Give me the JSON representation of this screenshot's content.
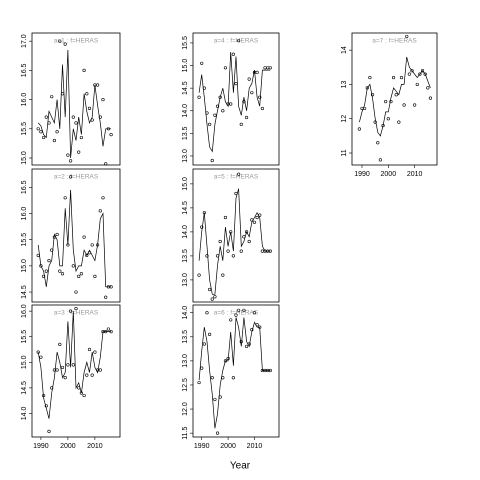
{
  "xlabel": "Year",
  "chart_data": [
    {
      "type": "line",
      "title": "a=1 : f=HERAS",
      "x": [
        1989,
        1990,
        1991,
        1992,
        1993,
        1994,
        1995,
        1996,
        1997,
        1998,
        1999,
        2000,
        2001,
        2002,
        2003,
        2004,
        2005,
        2006,
        2007,
        2008,
        2009,
        2010,
        2011,
        2012,
        2013,
        2014,
        2015,
        2016
      ],
      "xlim": [
        1986.7,
        2019.3
      ],
      "ylim": [
        14.88,
        17.14
      ],
      "yticks": [
        {
          "value": 15,
          "label": "15.0"
        },
        15.5,
        {
          "value": 16,
          "label": "16.0"
        },
        16.5,
        {
          "value": 17,
          "label": "17.0"
        }
      ],
      "series": [
        {
          "style": "points",
          "color": "#000",
          "values": [
            15.5,
            15.45,
            15.35,
            15.7,
            15.6,
            16.05,
            15.3,
            15.45,
            17.0,
            16.1,
            16.95,
            15.05,
            14.95,
            15.7,
            15.6,
            15.1,
            15.35,
            16.5,
            16.1,
            15.85,
            15.65,
            16.25,
            16.25,
            15.7,
            16.0,
            14.9,
            15.5,
            15.4
          ]
        },
        {
          "style": "line",
          "color": "#000",
          "values": [
            15.6,
            15.55,
            15.4,
            15.35,
            15.8,
            15.7,
            15.6,
            16.0,
            15.5,
            16.6,
            15.7,
            16.85,
            15.0,
            15.5,
            15.3,
            15.7,
            15.4,
            16.1,
            15.8,
            15.6,
            15.7,
            16.25,
            15.9,
            15.6,
            15.2,
            15.5,
            15.5,
            15.5
          ]
        }
      ]
    },
    {
      "type": "line",
      "title": "a=2 : f=HERAS",
      "x": [
        1989,
        1990,
        1991,
        1992,
        1993,
        1994,
        1995,
        1996,
        1997,
        1998,
        1999,
        2000,
        2001,
        2002,
        2003,
        2004,
        2005,
        2006,
        2007,
        2008,
        2009,
        2010,
        2011,
        2012,
        2013,
        2014,
        2015,
        2016
      ],
      "xlim": [
        1986.7,
        2019.3
      ],
      "ylim": [
        14.31,
        16.85
      ],
      "yticks": [
        14.5,
        {
          "value": 15,
          "label": "15.0"
        },
        15.5,
        {
          "value": 16,
          "label": "16.0"
        },
        16.5
      ],
      "series": [
        {
          "style": "points",
          "color": "#000",
          "values": [
            15.2,
            15.0,
            14.8,
            14.9,
            15.1,
            15.3,
            15.55,
            15.6,
            14.9,
            14.85,
            16.3,
            15.4,
            16.7,
            15.0,
            14.5,
            14.8,
            14.85,
            15.55,
            15.2,
            15.25,
            15.4,
            14.8,
            15.4,
            16.05,
            16.3,
            14.4,
            14.6,
            14.6
          ]
        },
        {
          "style": "line",
          "color": "#000",
          "values": [
            15.4,
            15.0,
            14.9,
            14.6,
            15.0,
            15.1,
            15.6,
            15.5,
            15.0,
            15.0,
            16.1,
            15.4,
            16.45,
            15.3,
            14.9,
            15.0,
            15.0,
            15.3,
            15.2,
            15.3,
            15.2,
            15.1,
            15.4,
            15.9,
            16.0,
            14.6,
            14.6,
            14.6
          ]
        }
      ]
    },
    {
      "type": "line",
      "title": "a=3 : f=HERAS",
      "x": [
        1989,
        1990,
        1991,
        1992,
        1993,
        1994,
        1995,
        1996,
        1997,
        1998,
        1999,
        2000,
        2001,
        2002,
        2003,
        2004,
        2005,
        2006,
        2007,
        2008,
        2009,
        2010,
        2011,
        2012,
        2013,
        2014,
        2015,
        2016
      ],
      "xlim": [
        1986.7,
        2019.3
      ],
      "ylim": [
        13.54,
        16.12
      ],
      "xticks": [
        1990,
        2000,
        2010
      ],
      "yticks": [
        {
          "value": 14,
          "label": "14.0"
        },
        14.5,
        {
          "value": 15,
          "label": "15.0"
        },
        15.5,
        {
          "value": 16,
          "label": "16.0"
        }
      ],
      "series": [
        {
          "style": "points",
          "color": "#000",
          "values": [
            15.2,
            15.1,
            14.35,
            14.15,
            13.65,
            14.5,
            14.85,
            14.85,
            15.35,
            14.9,
            14.7,
            14.95,
            16.0,
            14.95,
            16.05,
            14.5,
            14.4,
            14.35,
            14.75,
            15.25,
            14.75,
            15.2,
            14.85,
            14.85,
            15.6,
            15.6,
            15.65,
            15.6
          ]
        },
        {
          "style": "line",
          "color": "#000",
          "values": [
            15.2,
            14.9,
            14.3,
            14.1,
            13.9,
            14.4,
            14.7,
            15.2,
            15.0,
            14.7,
            14.8,
            15.8,
            14.9,
            16.0,
            14.5,
            14.6,
            14.4,
            14.8,
            15.0,
            14.8,
            15.2,
            14.9,
            14.8,
            15.1,
            15.6,
            15.6,
            15.6,
            15.6
          ]
        }
      ]
    },
    {
      "type": "line",
      "title": "a=4 : f=HERAS",
      "x": [
        1989,
        1990,
        1991,
        1992,
        1993,
        1994,
        1995,
        1996,
        1997,
        1998,
        1999,
        2000,
        2001,
        2002,
        2003,
        2004,
        2005,
        2006,
        2007,
        2008,
        2009,
        2010,
        2011,
        2012,
        2013,
        2014,
        2015,
        2016
      ],
      "xlim": [
        1986.7,
        2019.3
      ],
      "ylim": [
        12.8,
        15.72
      ],
      "yticks": [
        {
          "value": 13,
          "label": "13.0"
        },
        13.5,
        {
          "value": 14,
          "label": "14.0"
        },
        14.5,
        {
          "value": 15,
          "label": "15.0"
        },
        15.5
      ],
      "series": [
        {
          "style": "points",
          "color": "#000",
          "values": [
            14.3,
            15.05,
            14.5,
            13.95,
            13.7,
            12.9,
            13.9,
            14.1,
            14.3,
            14.0,
            14.95,
            14.15,
            14.15,
            15.25,
            14.6,
            15.55,
            13.7,
            14.2,
            13.85,
            14.7,
            14.4,
            14.85,
            14.85,
            14.3,
            14.05,
            14.95,
            14.95,
            14.95
          ]
        },
        {
          "style": "line",
          "color": "#000",
          "values": [
            14.4,
            14.8,
            14.3,
            13.7,
            13.2,
            13.1,
            13.7,
            14.0,
            14.3,
            14.5,
            14.2,
            14.1,
            15.3,
            14.4,
            15.2,
            14.1,
            13.9,
            14.3,
            14.0,
            14.5,
            14.6,
            14.9,
            14.3,
            14.1,
            14.9,
            14.9,
            14.9,
            14.9
          ]
        }
      ]
    },
    {
      "type": "line",
      "title": "a=5 : f=HERAS",
      "x": [
        1989,
        1990,
        1991,
        1992,
        1993,
        1994,
        1995,
        1996,
        1997,
        1998,
        1999,
        2000,
        2001,
        2002,
        2003,
        2004,
        2005,
        2006,
        2007,
        2008,
        2009,
        2010,
        2011,
        2012,
        2013,
        2014,
        2015,
        2016
      ],
      "xlim": [
        1986.7,
        2019.3
      ],
      "ylim": [
        12.54,
        15.31
      ],
      "yticks": [
        {
          "value": 13,
          "label": "13.0"
        },
        13.5,
        {
          "value": 14,
          "label": "14.0"
        },
        14.5,
        {
          "value": 15,
          "label": "15.0"
        }
      ],
      "series": [
        {
          "style": "points",
          "color": "#000",
          "values": [
            13.1,
            14.1,
            14.4,
            13.5,
            12.8,
            12.6,
            12.65,
            13.5,
            13.8,
            13.1,
            14.3,
            13.6,
            14.0,
            13.5,
            14.8,
            15.2,
            13.6,
            13.9,
            14.0,
            13.8,
            14.25,
            14.2,
            14.3,
            14.35,
            13.6,
            13.6,
            13.6,
            13.6
          ]
        },
        {
          "style": "line",
          "color": "#000",
          "values": [
            13.4,
            14.0,
            14.4,
            13.7,
            13.0,
            12.7,
            12.7,
            13.3,
            13.7,
            13.4,
            14.1,
            13.7,
            14.0,
            13.6,
            14.7,
            14.9,
            13.7,
            13.8,
            14.0,
            13.9,
            14.2,
            14.3,
            14.4,
            14.3,
            13.7,
            13.6,
            13.6,
            13.6
          ]
        }
      ]
    },
    {
      "type": "line",
      "title": "a=6 : f=HERAS",
      "x": [
        1989,
        1990,
        1991,
        1992,
        1993,
        1994,
        1995,
        1996,
        1997,
        1998,
        1999,
        2000,
        2001,
        2002,
        2003,
        2004,
        2005,
        2006,
        2007,
        2008,
        2009,
        2010,
        2011,
        2012,
        2013,
        2014,
        2015,
        2016
      ],
      "xlim": [
        1986.7,
        2019.3
      ],
      "ylim": [
        11.42,
        14.16
      ],
      "xticks": [
        1990,
        2000,
        2010
      ],
      "yticks": [
        11.5,
        {
          "value": 12,
          "label": "12.0"
        },
        12.5,
        {
          "value": 13,
          "label": "13.0"
        },
        13.5,
        {
          "value": 14,
          "label": "14.0"
        }
      ],
      "series": [
        {
          "style": "points",
          "color": "#000",
          "values": [
            12.55,
            12.85,
            13.35,
            14.0,
            13.55,
            12.65,
            12.2,
            11.5,
            12.25,
            12.65,
            13.0,
            13.05,
            13.85,
            12.65,
            13.95,
            14.05,
            13.4,
            14.05,
            13.3,
            13.35,
            13.65,
            14.0,
            13.75,
            13.7,
            12.8,
            12.8,
            12.8,
            12.8
          ]
        },
        {
          "style": "line",
          "color": "#000",
          "values": [
            12.6,
            13.2,
            13.7,
            13.4,
            12.8,
            12.3,
            11.6,
            11.9,
            12.5,
            12.8,
            13.0,
            13.0,
            13.6,
            12.9,
            13.9,
            13.7,
            13.3,
            13.9,
            13.4,
            13.3,
            13.6,
            13.8,
            13.7,
            13.7,
            12.8,
            12.8,
            12.8,
            12.8
          ]
        }
      ]
    },
    {
      "type": "line",
      "title": "a=7 : f=HERAS",
      "x": [
        1989,
        1990,
        1991,
        1992,
        1993,
        1994,
        1995,
        1996,
        1997,
        1998,
        1999,
        2000,
        2001,
        2002,
        2003,
        2004,
        2005,
        2006,
        2007,
        2008,
        2009,
        2010,
        2011,
        2012,
        2013,
        2014,
        2015,
        2016
      ],
      "xlim": [
        1986.2,
        2018.5
      ],
      "ylim": [
        10.65,
        14.5
      ],
      "xticks": [
        1990,
        2000,
        2010
      ],
      "yticks": [
        11,
        12,
        13,
        14
      ],
      "series": [
        {
          "style": "points",
          "color": "#000",
          "values": [
            11.7,
            12.3,
            12.3,
            12.9,
            13.2,
            12.7,
            11.9,
            11.3,
            10.8,
            11.8,
            12.5,
            12.0,
            12.5,
            13.2,
            12.7,
            11.9,
            13.2,
            12.4,
            14.4,
            13.3,
            13.4,
            12.4,
            13.0,
            13.3,
            13.4,
            13.3,
            12.9,
            12.6
          ]
        },
        {
          "style": "line",
          "color": "#000",
          "values": [
            11.9,
            12.2,
            12.4,
            12.9,
            13.0,
            12.6,
            12.0,
            11.6,
            11.5,
            11.8,
            12.2,
            12.2,
            12.6,
            12.9,
            12.8,
            12.7,
            13.0,
            13.0,
            13.8,
            13.5,
            13.4,
            13.3,
            13.2,
            13.3,
            13.4,
            13.3,
            13.1,
            12.9
          ]
        }
      ]
    }
  ]
}
